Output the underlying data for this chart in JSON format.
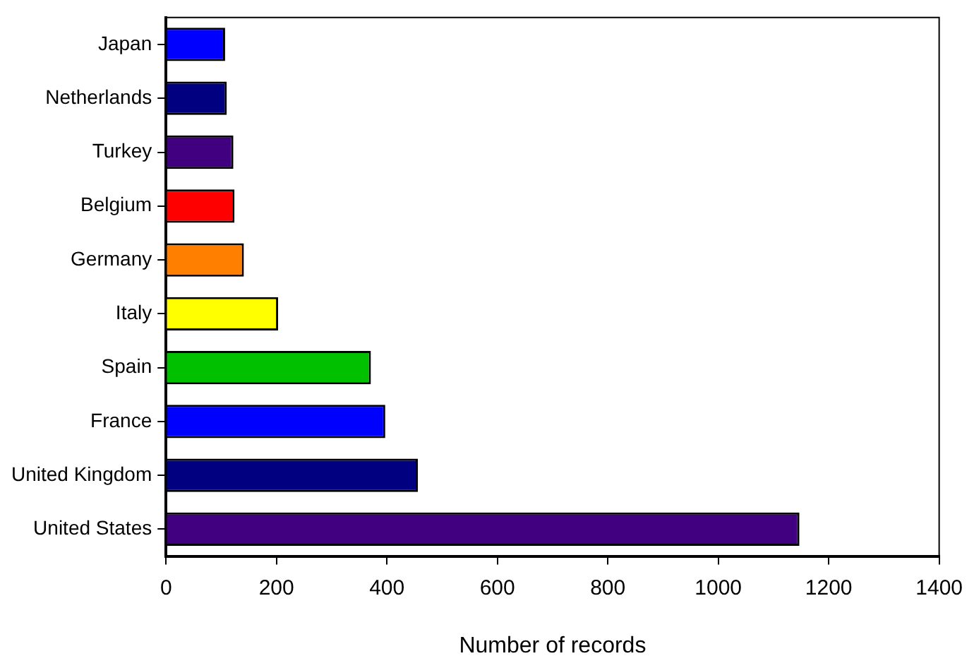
{
  "chart_data": {
    "type": "bar",
    "orientation": "horizontal",
    "xlabel": "Number of records",
    "categories": [
      "Japan",
      "Netherlands",
      "Turkey",
      "Belgium",
      "Germany",
      "Italy",
      "Spain",
      "France",
      "United Kingdom",
      "United States"
    ],
    "values": [
      107,
      110,
      122,
      124,
      141,
      203,
      371,
      397,
      456,
      1147
    ],
    "colors": [
      "#0000ff",
      "#000080",
      "#400080",
      "#ff0000",
      "#ff8000",
      "#ffff00",
      "#00c000",
      "#0000ff",
      "#000080",
      "#400080"
    ],
    "xlim": [
      0,
      1400
    ],
    "xticks": [
      0,
      200,
      400,
      600,
      800,
      1000,
      1200,
      1400
    ],
    "grid": false,
    "legend": false
  }
}
